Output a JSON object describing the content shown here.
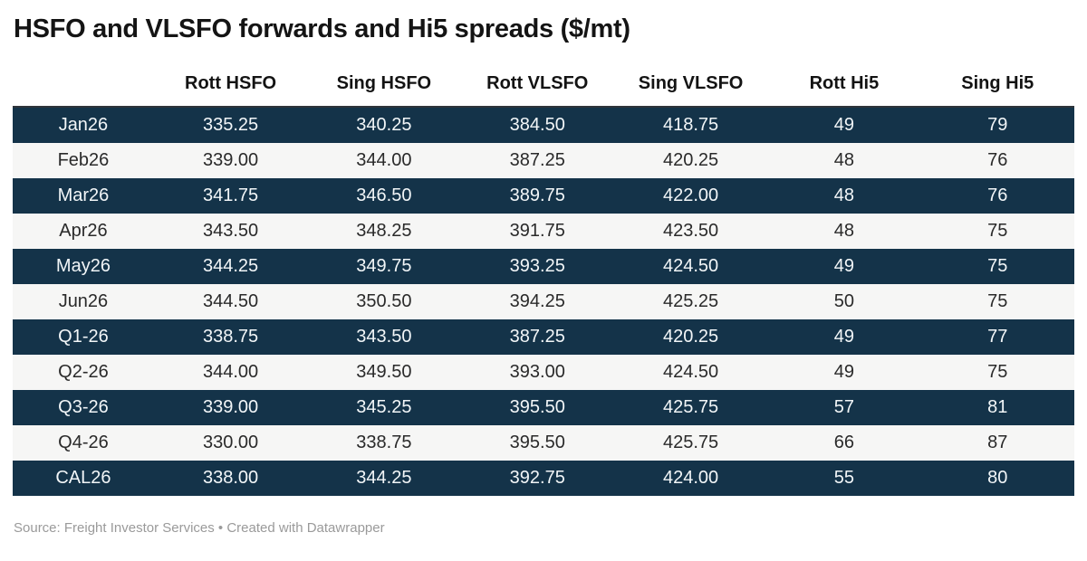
{
  "title": "HSFO and VLSFO forwards and Hi5 spreads ($/mt)",
  "footer": {
    "source_text": "Source: Freight Investor Services • Created with Datawrapper"
  },
  "colors": {
    "row_dark": "#143349",
    "row_light": "#f6f6f5",
    "text_on_dark": "#f2f6f8",
    "text_on_light": "#2a2a2a",
    "header_border": "#2f343a",
    "footer_text": "#9a9a9a"
  },
  "table": {
    "columns": [
      "",
      "Rott HSFO",
      "Sing HSFO",
      "Rott VLSFO",
      "Sing VLSFO",
      "Rott Hi5",
      "Sing Hi5"
    ],
    "rows": [
      {
        "label": "Jan26",
        "values": [
          "335.25",
          "340.25",
          "384.50",
          "418.75",
          "49",
          "79"
        ]
      },
      {
        "label": "Feb26",
        "values": [
          "339.00",
          "344.00",
          "387.25",
          "420.25",
          "48",
          "76"
        ]
      },
      {
        "label": "Mar26",
        "values": [
          "341.75",
          "346.50",
          "389.75",
          "422.00",
          "48",
          "76"
        ]
      },
      {
        "label": "Apr26",
        "values": [
          "343.50",
          "348.25",
          "391.75",
          "423.50",
          "48",
          "75"
        ]
      },
      {
        "label": "May26",
        "values": [
          "344.25",
          "349.75",
          "393.25",
          "424.50",
          "49",
          "75"
        ]
      },
      {
        "label": "Jun26",
        "values": [
          "344.50",
          "350.50",
          "394.25",
          "425.25",
          "50",
          "75"
        ]
      },
      {
        "label": "Q1-26",
        "values": [
          "338.75",
          "343.50",
          "387.25",
          "420.25",
          "49",
          "77"
        ]
      },
      {
        "label": "Q2-26",
        "values": [
          "344.00",
          "349.50",
          "393.00",
          "424.50",
          "49",
          "75"
        ]
      },
      {
        "label": "Q3-26",
        "values": [
          "339.00",
          "345.25",
          "395.50",
          "425.75",
          "57",
          "81"
        ]
      },
      {
        "label": "Q4-26",
        "values": [
          "330.00",
          "338.75",
          "395.50",
          "425.75",
          "66",
          "87"
        ]
      },
      {
        "label": "CAL26",
        "values": [
          "338.00",
          "344.25",
          "392.75",
          "424.00",
          "55",
          "80"
        ]
      }
    ]
  },
  "chart_data": {
    "type": "table",
    "title": "HSFO and VLSFO forwards and Hi5 spreads ($/mt)",
    "categories": [
      "Jan26",
      "Feb26",
      "Mar26",
      "Apr26",
      "May26",
      "Jun26",
      "Q1-26",
      "Q2-26",
      "Q3-26",
      "Q4-26",
      "CAL26"
    ],
    "series": [
      {
        "name": "Rott HSFO",
        "values": [
          335.25,
          339.0,
          341.75,
          343.5,
          344.25,
          344.5,
          338.75,
          344.0,
          339.0,
          330.0,
          338.0
        ]
      },
      {
        "name": "Sing HSFO",
        "values": [
          340.25,
          344.0,
          346.5,
          348.25,
          349.75,
          350.5,
          343.5,
          349.5,
          345.25,
          338.75,
          344.25
        ]
      },
      {
        "name": "Rott VLSFO",
        "values": [
          384.5,
          387.25,
          389.75,
          391.75,
          393.25,
          394.25,
          387.25,
          393.0,
          395.5,
          395.5,
          392.75
        ]
      },
      {
        "name": "Sing VLSFO",
        "values": [
          418.75,
          420.25,
          422.0,
          423.5,
          424.5,
          425.25,
          420.25,
          424.5,
          425.75,
          425.75,
          424.0
        ]
      },
      {
        "name": "Rott Hi5",
        "values": [
          49,
          48,
          48,
          48,
          49,
          50,
          49,
          49,
          57,
          66,
          55
        ]
      },
      {
        "name": "Sing Hi5",
        "values": [
          79,
          76,
          76,
          75,
          75,
          75,
          77,
          75,
          81,
          87,
          80
        ]
      }
    ],
    "layout": {
      "row_striping": "alternating dark navy / light gray",
      "units": "$/mt",
      "source": "Freight Investor Services",
      "tool": "Datawrapper"
    }
  }
}
